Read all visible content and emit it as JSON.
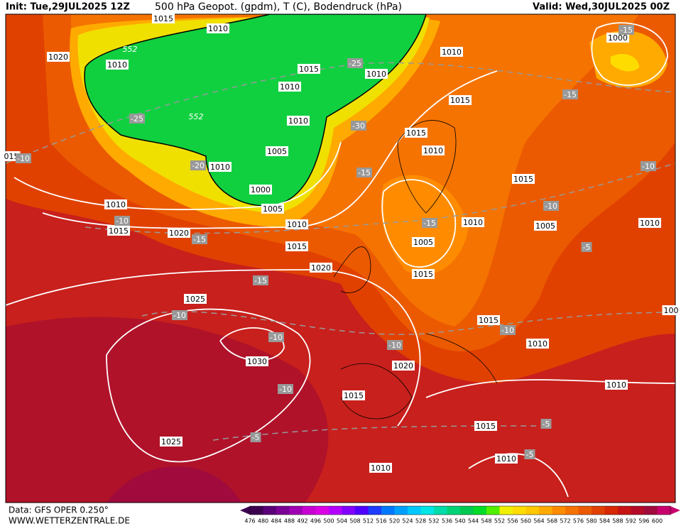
{
  "header": {
    "init": "Init: Tue,29JUL2025 12Z",
    "title": "500 hPa Geopot. (gpdm), T (C), Bodendruck (hPa)",
    "valid": "Valid: Wed,30JUL2025 00Z"
  },
  "map": {
    "isobar_labels": [
      1015,
      1010,
      1020,
      1010,
      1015,
      1010,
      1010,
      1000,
      1010,
      1015,
      1010,
      1015,
      1010,
      1005,
      1010,
      1000,
      1005,
      1015,
      1010,
      1015,
      1020,
      1010,
      1015,
      1010,
      1005,
      1010,
      1005,
      1015,
      1020,
      1025,
      1015,
      1010,
      1030,
      1020,
      1015,
      1010,
      1015,
      1025,
      1010,
      1010,
      "015",
      "100"
    ],
    "temperature_labels": [
      -15,
      -25,
      -15,
      -25,
      -30,
      -20,
      -15,
      -10,
      -10,
      -10,
      -15,
      -10,
      -15,
      -5,
      -15,
      -10,
      -10,
      -10,
      -10,
      -10,
      -5,
      -5,
      -5
    ],
    "contour_labels": [
      552,
      552
    ]
  },
  "colorbar": {
    "values": [
      476,
      480,
      484,
      488,
      492,
      496,
      500,
      504,
      508,
      512,
      516,
      520,
      524,
      528,
      532,
      536,
      540,
      544,
      548,
      552,
      556,
      560,
      564,
      568,
      572,
      576,
      580,
      584,
      588,
      592,
      596,
      600
    ],
    "colors": [
      "#3c0050",
      "#5a0078",
      "#7a0096",
      "#a000b4",
      "#c800d2",
      "#dc00e6",
      "#b400ff",
      "#8200ff",
      "#5000ff",
      "#1e3cff",
      "#0078ff",
      "#00a0ff",
      "#00c8ff",
      "#00e6e6",
      "#00dcaa",
      "#00d278",
      "#00c850",
      "#00dc28",
      "#50f000",
      "#f0f000",
      "#ffdc00",
      "#ffc800",
      "#ffaa00",
      "#ff8c00",
      "#f57300",
      "#eb5a00",
      "#e14100",
      "#d72800",
      "#c81414",
      "#b40a28",
      "#a00a3c",
      "#c8006e"
    ]
  },
  "footer": {
    "source": "Data: GFS OPER 0.250°",
    "website": "WWW.WETTERZENTRALE.DE"
  }
}
